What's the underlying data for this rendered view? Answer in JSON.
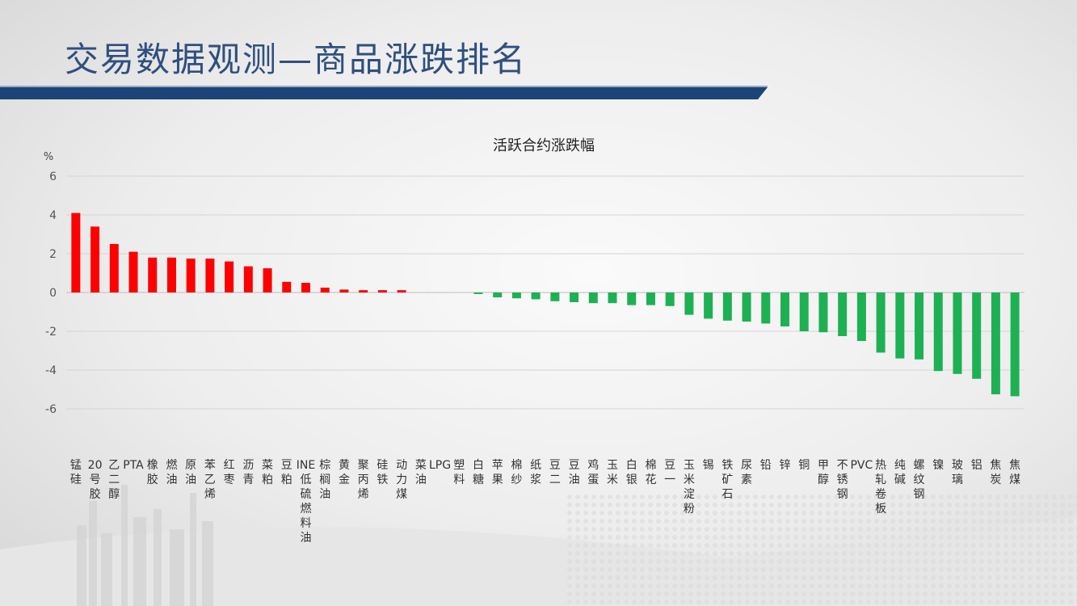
{
  "slide": {
    "title": "交易数据观测—商品涨跌排名"
  },
  "colors": {
    "title": "#2f4f7e",
    "band": "#1d4479",
    "up": "#ff0000",
    "down": "#1db154"
  },
  "chart_data": {
    "type": "bar",
    "title": "活跃合约涨跌幅",
    "ylabel": "%",
    "ylim": [
      -6,
      6
    ],
    "yticks": [
      6,
      4,
      2,
      0,
      -2,
      -4,
      -6
    ],
    "grid": true,
    "categories": [
      "锰硅",
      "20号胶",
      "乙二醇",
      "PTA",
      "橡胶",
      "燃油",
      "原油",
      "苯乙烯",
      "红枣",
      "沥青",
      "菜粕",
      "豆粕",
      "INE低硫燃料油",
      "棕榈油",
      "黄金",
      "聚丙烯",
      "硅铁",
      "动力煤",
      "菜油",
      "LPG",
      "塑料",
      "白糖",
      "苹果",
      "棉纱",
      "纸浆",
      "豆二",
      "豆油",
      "鸡蛋",
      "玉米",
      "白银",
      "棉花",
      "豆一",
      "玉米淀粉",
      "锡",
      "铁矿石",
      "尿素",
      "铅",
      "锌",
      "铜",
      "甲醇",
      "不锈钢",
      "PVC",
      "热轧卷板",
      "纯碱",
      "螺纹钢",
      "镍",
      "玻璃",
      "铝",
      "焦炭",
      "焦煤"
    ],
    "values": [
      4.1,
      3.4,
      2.5,
      2.1,
      1.8,
      1.8,
      1.75,
      1.75,
      1.6,
      1.35,
      1.25,
      0.55,
      0.5,
      0.25,
      0.15,
      0.12,
      0.12,
      0.12,
      0.0,
      0.0,
      0.0,
      -0.08,
      -0.25,
      -0.3,
      -0.35,
      -0.45,
      -0.5,
      -0.55,
      -0.55,
      -0.65,
      -0.65,
      -0.7,
      -1.15,
      -1.35,
      -1.45,
      -1.5,
      -1.6,
      -1.75,
      -2.0,
      -2.05,
      -2.25,
      -2.5,
      -3.1,
      -3.4,
      -3.45,
      -4.05,
      -4.2,
      -4.45,
      -5.25,
      -5.35
    ]
  }
}
